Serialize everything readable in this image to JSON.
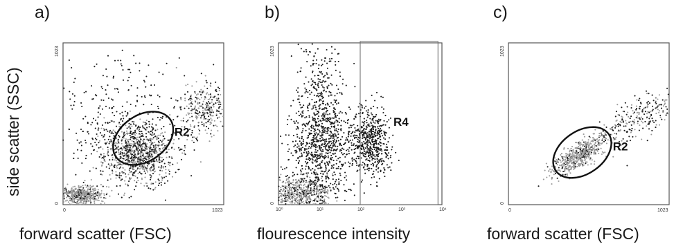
{
  "panels": {
    "a": {
      "letter": "a)",
      "xlabel": "forward scatter (FSC)",
      "gate": "R2",
      "tick_y_max": "1023",
      "tick_zero": "0",
      "tick_x_max": "1023"
    },
    "b": {
      "letter": "b)",
      "xlabel": "flourescence intensity",
      "gate": "R4",
      "tick_y_max": "1023",
      "tick_zero": "0",
      "x_ticks": [
        "10⁰",
        "10¹",
        "10²",
        "10³",
        "10⁴"
      ]
    },
    "c": {
      "letter": "c)",
      "xlabel": "forward scatter (FSC)",
      "gate": "R2",
      "tick_y_max": "1023",
      "tick_zero": "0",
      "tick_x_max": "1023"
    }
  },
  "shared": {
    "ylabel": "side scatter (SSC)"
  },
  "colors": {
    "dots": "#1c1c1c",
    "dense": "#9a9a9a",
    "frame": "#555555",
    "gate": "#111111"
  },
  "chart_data": [
    {
      "type": "scatter",
      "panel": "a",
      "xlabel": "forward scatter (FSC)",
      "ylabel": "side scatter (SSC)",
      "xlim": [
        0,
        1023
      ],
      "ylim": [
        0,
        1023
      ],
      "clusters": [
        {
          "cx": 120,
          "cy": 60,
          "sx": 70,
          "sy": 30,
          "n": 500,
          "shade": "dense"
        },
        {
          "cx": 480,
          "cy": 330,
          "sx": 110,
          "sy": 90,
          "n": 900,
          "shade": "mixed"
        },
        {
          "cx": 900,
          "cy": 600,
          "sx": 80,
          "sy": 80,
          "n": 300,
          "shade": "mixed"
        },
        {
          "cx": 350,
          "cy": 500,
          "sx": 220,
          "sy": 230,
          "n": 350,
          "shade": "dark"
        }
      ],
      "gates": [
        {
          "name": "R2",
          "shape": "ellipse",
          "cx": 510,
          "cy": 420,
          "rx": 210,
          "ry": 145,
          "angle_deg": 35
        }
      ]
    },
    {
      "type": "scatter",
      "panel": "b",
      "xlabel": "flourescence intensity",
      "ylabel": "side scatter (SSC)",
      "x_scale": "log",
      "xlim": [
        1,
        10000
      ],
      "ylim": [
        0,
        1023
      ],
      "clusters": [
        {
          "logx": 0.5,
          "cy": 70,
          "slx": 0.35,
          "sy": 50,
          "n": 600,
          "shade": "dense"
        },
        {
          "logx": 1.05,
          "cy": 380,
          "slx": 0.35,
          "sy": 180,
          "n": 900,
          "shade": "dark"
        },
        {
          "logx": 2.25,
          "cy": 400,
          "slx": 0.25,
          "sy": 110,
          "n": 550,
          "shade": "dark"
        },
        {
          "logx": 1.0,
          "cy": 800,
          "slx": 0.3,
          "sy": 180,
          "n": 150,
          "shade": "dark"
        }
      ],
      "gates": [
        {
          "name": "R4",
          "shape": "rectangle",
          "x_min": 100,
          "x_max": 8000,
          "y_min": 0,
          "y_max": 1023
        }
      ]
    },
    {
      "type": "scatter",
      "panel": "c",
      "xlabel": "forward scatter (FSC)",
      "ylabel": "side scatter (SSC)",
      "xlim": [
        0,
        1023
      ],
      "ylim": [
        0,
        1023
      ],
      "clusters": [
        {
          "cx": 450,
          "cy": 310,
          "sx": 90,
          "sy": 65,
          "n": 550,
          "shade": "dense",
          "corr": 0.8
        },
        {
          "cx": 850,
          "cy": 560,
          "sx": 110,
          "sy": 80,
          "n": 250,
          "shade": "mixed",
          "corr": 0.6
        }
      ],
      "gates": [
        {
          "name": "R2",
          "shape": "ellipse",
          "cx": 470,
          "cy": 330,
          "rx": 205,
          "ry": 135,
          "angle_deg": 35
        }
      ]
    }
  ]
}
